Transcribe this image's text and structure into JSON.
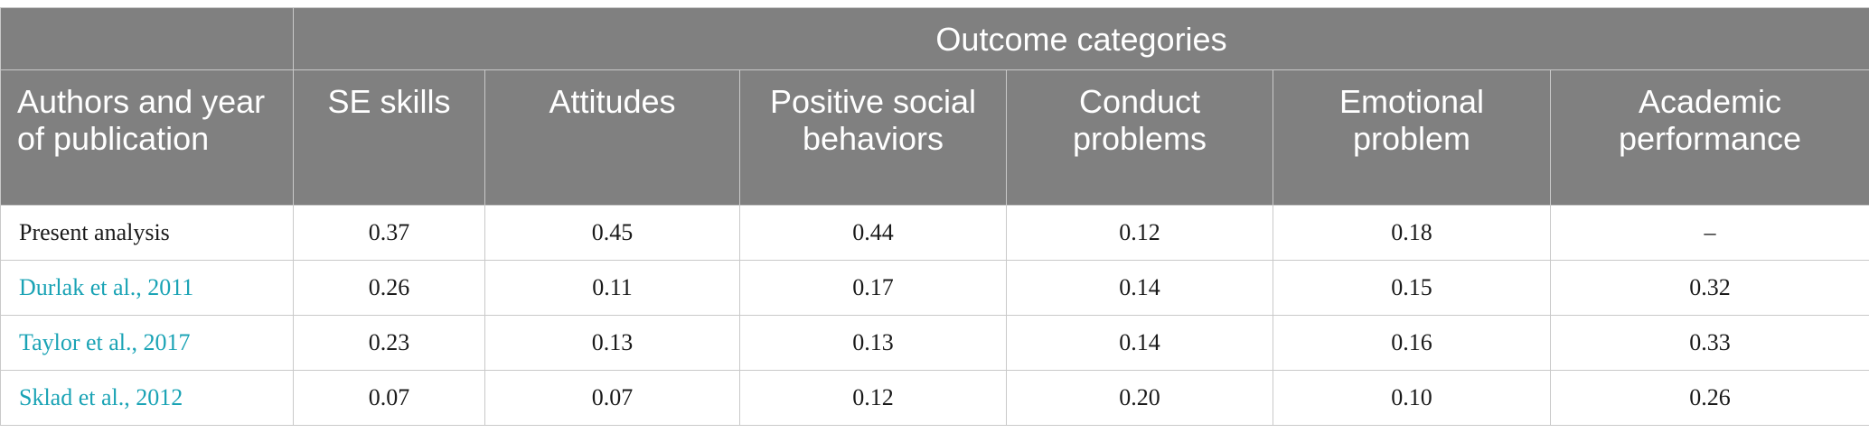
{
  "table": {
    "group_header": "Outcome categories",
    "columns": [
      "Authors and year of publication",
      "SE skills",
      "Attitudes",
      "Positive social behaviors",
      "Conduct problems",
      "Emotional problem",
      "Academic performance"
    ],
    "rows": [
      {
        "author": "Present analysis",
        "is_link": false,
        "values": [
          "0.37",
          "0.45",
          "0.44",
          "0.12",
          "0.18",
          "–"
        ]
      },
      {
        "author": "Durlak et al., 2011",
        "is_link": true,
        "values": [
          "0.26",
          "0.11",
          "0.17",
          "0.14",
          "0.15",
          "0.32"
        ]
      },
      {
        "author": "Taylor et al., 2017",
        "is_link": true,
        "values": [
          "0.23",
          "0.13",
          "0.13",
          "0.14",
          "0.16",
          "0.33"
        ]
      },
      {
        "author": "Sklad et al., 2012",
        "is_link": true,
        "values": [
          "0.07",
          "0.07",
          "0.12",
          "0.20",
          "0.10",
          "0.26"
        ]
      }
    ]
  },
  "colors": {
    "header_bg": "#808080",
    "header_text": "#ffffff",
    "link_text": "#1aa3b5",
    "border": "#c9c9c9"
  }
}
